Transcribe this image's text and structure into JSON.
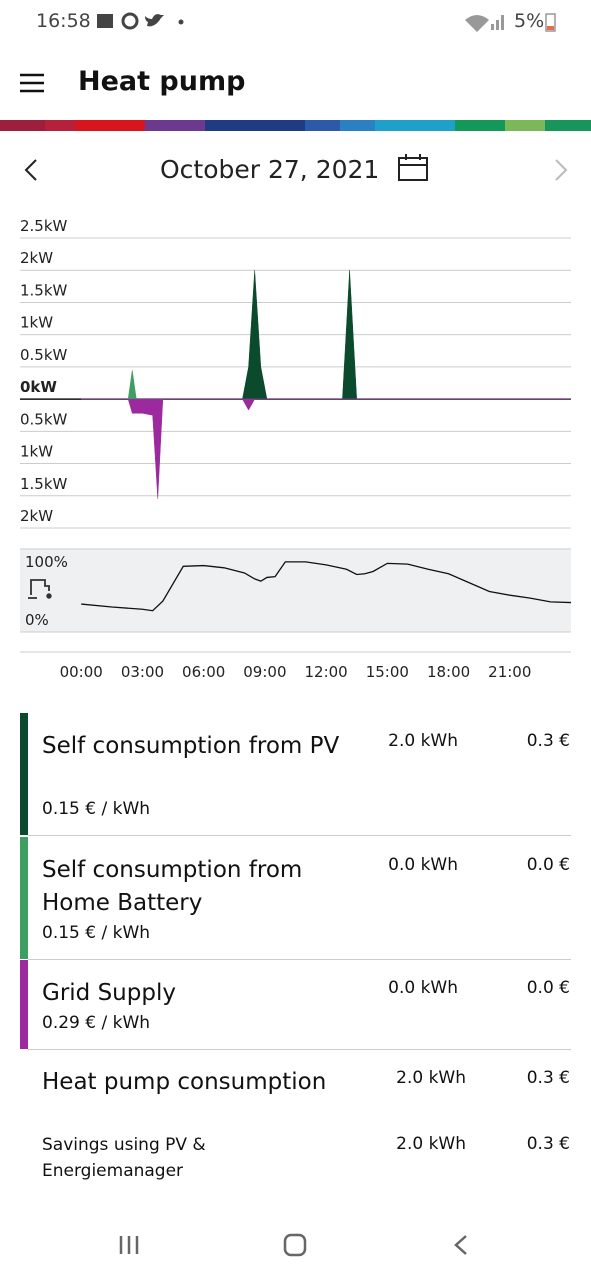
{
  "status": {
    "time": "16:58",
    "battery": "5%"
  },
  "header": {
    "title": "Heat pump"
  },
  "date": "October 27, 2021",
  "chart_data": [
    {
      "type": "area",
      "x": [
        0,
        2.3,
        2.5,
        2.7,
        3.0,
        3.5,
        3.75,
        4.0,
        7.9,
        8.2,
        8.5,
        8.8,
        9.1,
        12.8,
        13.15,
        13.5,
        24
      ],
      "xlim": [
        -3,
        24
      ],
      "xticks": [
        {
          "value": 0,
          "label": "00:00"
        },
        {
          "value": 3,
          "label": "03:00"
        },
        {
          "value": 6,
          "label": "06:00"
        },
        {
          "value": 9,
          "label": "09:00"
        },
        {
          "value": 12,
          "label": "12:00"
        },
        {
          "value": 15,
          "label": "15:00"
        },
        {
          "value": 18,
          "label": "18:00"
        },
        {
          "value": 21,
          "label": "21:00"
        }
      ],
      "ylim": [
        -2,
        2.5
      ],
      "yticks": [
        {
          "value": 2.5,
          "label": "2.5kW"
        },
        {
          "value": 2,
          "label": "2kW"
        },
        {
          "value": 1.5,
          "label": "1.5kW"
        },
        {
          "value": 1,
          "label": "1kW"
        },
        {
          "value": 0.5,
          "label": "0.5kW"
        },
        {
          "value": 0,
          "label": "0kW"
        },
        {
          "value": -0.5,
          "label": "0.5kW"
        },
        {
          "value": -1,
          "label": "1kW"
        },
        {
          "value": -1.5,
          "label": "1.5kW"
        },
        {
          "value": -2,
          "label": "2kW"
        }
      ],
      "grid": true,
      "series": [
        {
          "name": "Self consumption from PV",
          "color": "#0b4a2c",
          "price": "0.15 € / kWh",
          "energy": "2.0 kWh",
          "cost": "0.3 €",
          "values": [
            0,
            0,
            0,
            0,
            0,
            0,
            0,
            0,
            0,
            0.5,
            2.0,
            0.5,
            0,
            0,
            2.0,
            0,
            0
          ]
        },
        {
          "name": "Self consumption from Home Battery",
          "color": "#3f9e62",
          "price": "0.15 € / kWh",
          "energy": "0.0 kWh",
          "cost": "0.0 €",
          "values": [
            0,
            0,
            0.45,
            0,
            0,
            0,
            0,
            0,
            0,
            0,
            0,
            0,
            0,
            0,
            0,
            0,
            0
          ]
        },
        {
          "name": "Grid Supply",
          "color": "#9c2a9e",
          "price": "0.29 € / kWh",
          "energy": "0.0 kWh",
          "cost": "0.0 €",
          "values": [
            0,
            0,
            -0.22,
            -0.22,
            -0.22,
            -0.25,
            -1.55,
            0,
            0,
            -0.17,
            0,
            0,
            0,
            0,
            0,
            0,
            0
          ]
        }
      ]
    },
    {
      "type": "line",
      "x": [
        0,
        1.5,
        3,
        3.5,
        4,
        5,
        6,
        7,
        8,
        8.5,
        8.8,
        9.1,
        9.5,
        10,
        11,
        12,
        13,
        13.5,
        13.9,
        14.3,
        15,
        16,
        17,
        18,
        19,
        20,
        21,
        22,
        23,
        24
      ],
      "xlim": [
        -3,
        24
      ],
      "ylim": [
        0,
        100
      ],
      "yticks": [
        {
          "value": 100,
          "label": "100%"
        },
        {
          "value": 0,
          "label": "0%"
        }
      ],
      "values": [
        31,
        27,
        24,
        22,
        35,
        82,
        83,
        80,
        73,
        65,
        62,
        67,
        68,
        88,
        88,
        84,
        78,
        71,
        72,
        75,
        86,
        85,
        78,
        72,
        60,
        48,
        43,
        39,
        34,
        33
      ]
    }
  ],
  "totals": [
    {
      "name": "Heat pump consumption",
      "energy": "2.0 kWh",
      "cost": "0.3 €"
    },
    {
      "name": "Savings using PV & Energiemanager",
      "energy": "2.0 kWh",
      "cost": "0.3 €"
    }
  ]
}
